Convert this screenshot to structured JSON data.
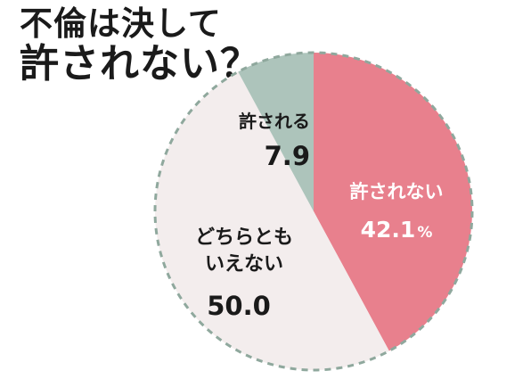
{
  "title": {
    "line1": "不倫は決して",
    "line2": "許されない？"
  },
  "chart_data": {
    "type": "pie",
    "title": "不倫は決して許されない？",
    "unit": "%",
    "slices": [
      {
        "label": "許されない",
        "value": 42.1,
        "display": "42.1",
        "unit": "%",
        "color": "#e8808d"
      },
      {
        "label": "どちらともいえない",
        "label_lines": [
          "どちらとも",
          "いえない"
        ],
        "value": 50.0,
        "display": "50.0",
        "unit": "",
        "color": "#f3eded"
      },
      {
        "label": "許される",
        "value": 7.9,
        "display": "7.9",
        "unit": "",
        "color": "#adc4bb"
      }
    ],
    "border": "dashed",
    "border_color": "#8fa89d",
    "legend": "none"
  }
}
